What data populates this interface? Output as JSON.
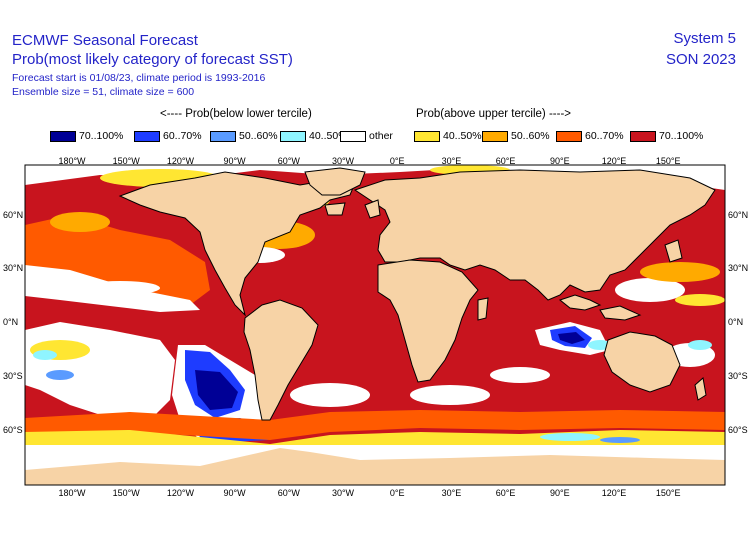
{
  "header": {
    "title_line1": "ECMWF Seasonal Forecast",
    "title_line2": "Prob(most likely category of forecast SST)",
    "info_line1": "Forecast start is 01/08/23, climate period is 1993-2016",
    "info_line2": "Ensemble size = 51, climate size = 600",
    "system": "System 5",
    "season": "SON 2023"
  },
  "legend": {
    "below_label": "<---- Prob(below lower tercile)",
    "above_label": "Prob(above upper tercile) ---->",
    "items": [
      {
        "label": "70..100%",
        "color": "#000096"
      },
      {
        "label": "60..70%",
        "color": "#1e3cff"
      },
      {
        "label": "50..60%",
        "color": "#5a9bff"
      },
      {
        "label": "40..50%",
        "color": "#8ff5ff"
      },
      {
        "label": "other",
        "color": "#ffffff"
      },
      {
        "label": "40..50%",
        "color": "#ffe632"
      },
      {
        "label": "50..60%",
        "color": "#ffaa00"
      },
      {
        "label": "60..70%",
        "color": "#ff5a00"
      },
      {
        "label": "70..100%",
        "color": "#c8141e"
      }
    ]
  },
  "axes": {
    "lon_labels": [
      "180°W",
      "150°W",
      "120°W",
      "90°W",
      "60°W",
      "30°W",
      "0°E",
      "30°E",
      "60°E",
      "90°E",
      "120°E",
      "150°E"
    ],
    "lat_labels": [
      "60°N",
      "30°N",
      "0°N",
      "30°S",
      "60°S"
    ]
  },
  "colors": {
    "land": "#f7d3a6",
    "ocean_dominant": "#c8141e",
    "coastline": "#000000"
  }
}
